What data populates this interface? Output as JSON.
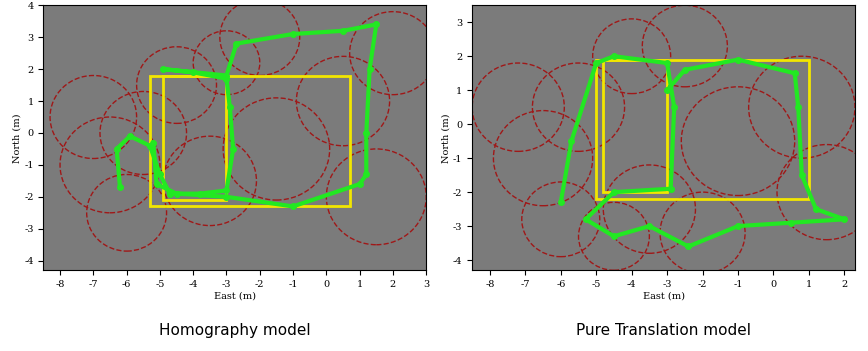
{
  "chart_data": [
    {
      "type": "line",
      "title": "Homography model",
      "x_label": "East (m)",
      "y_label": "North (m)",
      "xlim": [
        -8.5,
        3
      ],
      "ylim": [
        -4.3,
        4
      ],
      "xticks": [
        -8,
        -7,
        -6,
        -5,
        -4,
        -3,
        -2,
        -1,
        0,
        1,
        2,
        3
      ],
      "yticks": [
        -4,
        -3,
        -2,
        -1,
        0,
        1,
        2,
        3,
        4
      ],
      "series": [
        {
          "color": "#22e822",
          "marker": "o",
          "line_style": "solid",
          "x": [
            -6.2,
            -6.3,
            -5.9,
            -5.3,
            -5.0,
            -4.7,
            -3.8,
            -3.0,
            -2.8,
            -2.9,
            -3.0,
            -4.0,
            -4.9,
            -3.0,
            -2.7,
            -1.0,
            0.5,
            1.5,
            1.3,
            1.2,
            1.2,
            1.0,
            -1.0,
            -3.0,
            -4.5,
            -5.1,
            -5.2
          ],
          "y": [
            -1.7,
            -0.5,
            -0.1,
            -0.4,
            -1.3,
            -1.9,
            -1.9,
            -1.8,
            -0.5,
            0.8,
            1.7,
            1.9,
            2.0,
            1.8,
            2.8,
            3.1,
            3.2,
            3.4,
            2.0,
            0.0,
            -1.3,
            -1.6,
            -2.3,
            -2.0,
            -1.9,
            -1.6,
            -0.3
          ]
        }
      ],
      "rectangles": {
        "color": "#f2e600",
        "x0": [
          -4.9,
          -5.3
        ],
        "y0": [
          -2.1,
          -2.3
        ],
        "x1": [
          -3.0,
          0.7
        ],
        "y1": [
          1.8,
          1.8
        ]
      },
      "circles": {
        "color": "#a01818",
        "x": [
          -6.5,
          -5.5,
          -4.5,
          -3.0,
          -6.0,
          -3.5,
          -1.5,
          0.5,
          2.0,
          1.5,
          -2.0,
          -7.0
        ],
        "y": [
          -1.0,
          0.0,
          1.5,
          2.2,
          -2.5,
          -1.5,
          -0.5,
          1.0,
          2.5,
          -2.0,
          3.0,
          0.5
        ],
        "r": [
          1.5,
          1.3,
          1.2,
          1.0,
          1.2,
          1.4,
          1.6,
          1.4,
          1.3,
          1.5,
          1.2,
          1.3
        ]
      }
    },
    {
      "type": "line",
      "title": "Pure Translation model",
      "x_label": "East (m)",
      "y_label": "North (m)",
      "xlim": [
        -8.5,
        2.3
      ],
      "ylim": [
        -4.3,
        3.5
      ],
      "xticks": [
        -8,
        -7,
        -6,
        -5,
        -4,
        -3,
        -2,
        -1,
        0,
        1,
        2
      ],
      "yticks": [
        -4,
        -3,
        -2,
        -1,
        0,
        1,
        2,
        3
      ],
      "series": [
        {
          "color": "#22e822",
          "marker": "o",
          "line_style": "solid",
          "x": [
            -6.0,
            -5.7,
            -5.0,
            -4.5,
            -3.0,
            -2.8,
            -2.9,
            -4.5,
            -5.3,
            -4.5,
            -3.5,
            -2.4,
            -1.0,
            0.5,
            2.0,
            1.2,
            0.8,
            0.7,
            0.6,
            -1.0,
            -2.5,
            -3.0
          ],
          "y": [
            -2.3,
            -0.5,
            1.8,
            2.0,
            1.8,
            0.5,
            -1.9,
            -2.0,
            -2.8,
            -3.3,
            -3.0,
            -3.6,
            -3.0,
            -2.9,
            -2.8,
            -2.5,
            -1.5,
            0.5,
            1.5,
            1.9,
            1.6,
            1.0
          ]
        }
      ],
      "rectangles": {
        "color": "#f2e600",
        "x0": [
          -4.8,
          -5.0
        ],
        "y0": [
          -2.0,
          -2.2
        ],
        "x1": [
          -3.0,
          1.0
        ],
        "y1": [
          1.9,
          1.9
        ]
      },
      "circles": {
        "color": "#a01818",
        "x": [
          -6.5,
          -5.5,
          -4.0,
          -2.5,
          -6.0,
          -3.5,
          -1.0,
          0.8,
          1.5,
          -2.0,
          -7.2,
          -4.5
        ],
        "y": [
          -1.0,
          0.5,
          2.0,
          2.3,
          -2.8,
          -2.5,
          -0.5,
          0.5,
          -2.0,
          -3.2,
          0.5,
          -3.3
        ],
        "r": [
          1.4,
          1.3,
          1.1,
          1.2,
          1.1,
          1.3,
          1.6,
          1.5,
          1.4,
          1.2,
          1.3,
          1.0
        ]
      }
    }
  ]
}
